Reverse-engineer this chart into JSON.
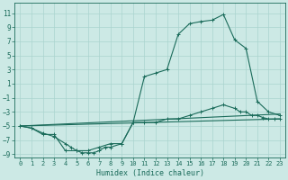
{
  "xlabel": "Humidex (Indice chaleur)",
  "bg_color": "#cce9e5",
  "grid_color": "#aad4cf",
  "line_color": "#1a6b5a",
  "xlim": [
    -0.5,
    23.5
  ],
  "ylim": [
    -9.5,
    12.5
  ],
  "xticks": [
    0,
    1,
    2,
    3,
    4,
    5,
    6,
    7,
    8,
    9,
    10,
    11,
    12,
    13,
    14,
    15,
    16,
    17,
    18,
    19,
    20,
    21,
    22,
    23
  ],
  "yticks": [
    -9,
    -7,
    -5,
    -3,
    -1,
    1,
    3,
    5,
    7,
    9,
    11
  ],
  "series1_x": [
    0,
    1,
    2,
    3,
    4,
    5,
    6,
    7,
    8,
    9,
    10,
    11,
    12,
    13,
    14,
    15,
    16,
    17,
    18,
    19,
    20,
    21,
    22,
    23
  ],
  "series1_y": [
    -5.0,
    -5.3,
    -6.2,
    -6.2,
    -8.5,
    -8.5,
    -8.5,
    -8.0,
    -7.5,
    -7.5,
    -4.5,
    2.0,
    2.5,
    3.0,
    8.0,
    9.5,
    9.8,
    10.0,
    10.8,
    7.2,
    6.0,
    -1.5,
    -3.0,
    -3.5
  ],
  "series2_x": [
    0,
    1,
    2,
    3,
    4,
    4.5,
    5,
    5.5,
    6,
    6.5,
    7,
    7.5,
    8,
    9,
    10,
    11,
    12,
    13,
    14,
    15,
    16,
    17,
    18,
    19,
    19.5,
    20,
    20.5,
    21,
    21.5,
    22,
    22.5,
    23
  ],
  "series2_y": [
    -5.0,
    -5.3,
    -6.0,
    -6.5,
    -7.5,
    -8.0,
    -8.5,
    -8.8,
    -8.8,
    -8.8,
    -8.5,
    -8.0,
    -8.0,
    -7.5,
    -4.5,
    -4.5,
    -4.5,
    -4.0,
    -4.0,
    -3.5,
    -3.0,
    -2.5,
    -2.0,
    -2.5,
    -3.0,
    -3.0,
    -3.5,
    -3.5,
    -3.8,
    -4.0,
    -4.0,
    -4.0
  ],
  "series3_x": [
    0,
    23
  ],
  "series3_y": [
    -5.0,
    -3.3
  ],
  "series4_x": [
    0,
    23
  ],
  "series4_y": [
    -5.0,
    -4.0
  ],
  "marker": "+",
  "markersize": 3,
  "linewidth": 0.8
}
